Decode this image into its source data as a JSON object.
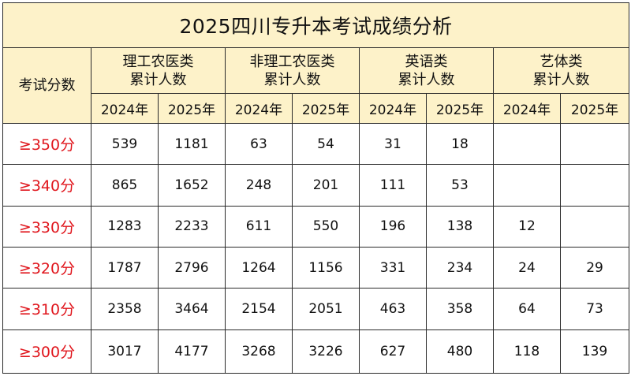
{
  "title": "2025四川专升本考试成绩分析",
  "row_header": "考试分数",
  "groups": [
    {
      "line1": "理工农医类",
      "line2": "累计人数"
    },
    {
      "line1": "非理工农医类",
      "line2": "累计人数"
    },
    {
      "line1": "英语类",
      "line2": "累计人数"
    },
    {
      "line1": "艺体类",
      "line2": "累计人数"
    }
  ],
  "years": [
    "2024年",
    "2025年",
    "2024年",
    "2025年",
    "2024年",
    "2025年",
    "2024年",
    "2025年"
  ],
  "rows": [
    {
      "label": "≥350分",
      "cells": [
        "539",
        "1181",
        "63",
        "54",
        "31",
        "18",
        "",
        ""
      ]
    },
    {
      "label": "≥340分",
      "cells": [
        "865",
        "1652",
        "248",
        "201",
        "111",
        "53",
        "",
        ""
      ]
    },
    {
      "label": "≥330分",
      "cells": [
        "1283",
        "2233",
        "611",
        "550",
        "196",
        "138",
        "12",
        ""
      ]
    },
    {
      "label": "≥320分",
      "cells": [
        "1787",
        "2796",
        "1264",
        "1156",
        "331",
        "234",
        "24",
        "29"
      ]
    },
    {
      "label": "≥310分",
      "cells": [
        "2358",
        "3464",
        "2154",
        "2051",
        "463",
        "358",
        "64",
        "73"
      ]
    },
    {
      "label": "≥300分",
      "cells": [
        "3017",
        "4177",
        "3268",
        "3226",
        "627",
        "480",
        "118",
        "139"
      ]
    }
  ],
  "colors": {
    "header_bg": "#fdf2c9",
    "score_label": "#e0161d",
    "border": "#2a2a2a"
  }
}
